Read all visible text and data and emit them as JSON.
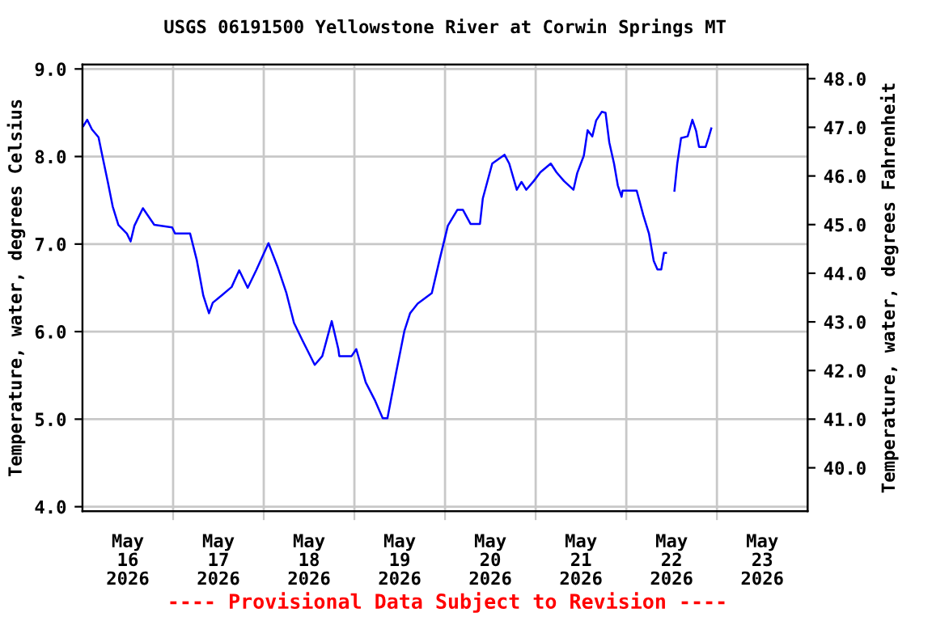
{
  "chart_data": {
    "type": "line",
    "title": "USGS 06191500 Yellowstone River at Corwin Springs MT",
    "ylabel": "Temperature, water, degrees Celsius",
    "y2label": "Temperature, water, degrees Fahrenheit",
    "annotations": [
      "---- Provisional Data Subject to Revision ----"
    ],
    "xlim": [
      "2026-05-16T00:00",
      "2026-05-24T00:00"
    ],
    "xticks": [
      {
        "value": "2026-05-16T12:00",
        "label": "May\n16\n2026"
      },
      {
        "value": "2026-05-17T12:00",
        "label": "May\n17\n2026"
      },
      {
        "value": "2026-05-18T12:00",
        "label": "May\n18\n2026"
      },
      {
        "value": "2026-05-19T12:00",
        "label": "May\n19\n2026"
      },
      {
        "value": "2026-05-20T12:00",
        "label": "May\n20\n2026"
      },
      {
        "value": "2026-05-21T12:00",
        "label": "May\n21\n2026"
      },
      {
        "value": "2026-05-22T12:00",
        "label": "May\n22\n2026"
      },
      {
        "value": "2026-05-23T12:00",
        "label": "May\n23\n2026"
      },
      {
        "value": "2026-05-17T00:00",
        "label": null
      },
      {
        "value": "2026-05-18T00:00",
        "label": null
      },
      {
        "value": "2026-05-19T00:00",
        "label": null
      },
      {
        "value": "2026-05-20T00:00",
        "label": null
      },
      {
        "value": "2026-05-21T00:00",
        "label": null
      },
      {
        "value": "2026-05-22T00:00",
        "label": null
      },
      {
        "value": "2026-05-23T00:00",
        "label": null
      }
    ],
    "ylim": [
      3.95,
      9.05
    ],
    "yticks": [
      {
        "value": 4,
        "label": "4.0"
      },
      {
        "value": 5,
        "label": "5.0"
      },
      {
        "value": 6,
        "label": "6.0"
      },
      {
        "value": 7,
        "label": "7.0"
      },
      {
        "value": 8,
        "label": "8.0"
      },
      {
        "value": 9,
        "label": "9.0"
      }
    ],
    "y2lim": [
      39.11,
      48.29
    ],
    "y2ticks": [
      {
        "value": 40,
        "label": "40.0"
      },
      {
        "value": 41,
        "label": "41.0"
      },
      {
        "value": 42,
        "label": "42.0"
      },
      {
        "value": 43,
        "label": "43.0"
      },
      {
        "value": 44,
        "label": "44.0"
      },
      {
        "value": 45,
        "label": "45.0"
      },
      {
        "value": 46,
        "label": "46.0"
      },
      {
        "value": 47,
        "label": "47.0"
      },
      {
        "value": 48,
        "label": "48.0"
      }
    ],
    "grid": true,
    "legend": false,
    "marker": "none",
    "line_style": "solid",
    "series": [
      {
        "color": "#0000ff",
        "x": [
          "2026-05-16T00:15",
          "2026-05-16T01:15",
          "2026-05-16T02:30",
          "2026-05-16T04:15",
          "2026-05-16T05:15",
          "2026-05-16T06:45",
          "2026-05-16T08:00",
          "2026-05-16T09:30",
          "2026-05-16T11:45",
          "2026-05-16T12:45",
          "2026-05-16T13:45",
          "2026-05-16T16:00",
          "2026-05-16T19:00",
          "2026-05-16T23:45",
          "2026-05-17T00:30",
          "2026-05-17T04:30",
          "2026-05-17T06:15",
          "2026-05-17T08:00",
          "2026-05-17T09:30",
          "2026-05-17T10:30",
          "2026-05-17T12:45",
          "2026-05-17T15:30",
          "2026-05-17T17:30",
          "2026-05-17T19:45",
          "2026-05-17T22:00",
          "2026-05-18T01:15",
          "2026-05-18T03:45",
          "2026-05-18T06:00",
          "2026-05-18T08:00",
          "2026-05-18T10:15",
          "2026-05-18T13:30",
          "2026-05-18T15:30",
          "2026-05-18T18:00",
          "2026-05-18T19:45",
          "2026-05-18T20:00",
          "2026-05-18T23:15",
          "2026-05-19T00:30",
          "2026-05-19T03:00",
          "2026-05-19T05:30",
          "2026-05-19T07:30",
          "2026-05-19T08:45",
          "2026-05-19T11:00",
          "2026-05-19T13:15",
          "2026-05-19T14:45",
          "2026-05-19T16:45",
          "2026-05-19T20:30",
          "2026-05-19T22:30",
          "2026-05-20T00:45",
          "2026-05-20T03:15",
          "2026-05-20T04:45",
          "2026-05-20T06:45",
          "2026-05-20T09:15",
          "2026-05-20T10:00",
          "2026-05-20T12:30",
          "2026-05-20T15:45",
          "2026-05-20T17:00",
          "2026-05-20T19:00",
          "2026-05-20T20:15",
          "2026-05-20T21:30",
          "2026-05-20T23:30",
          "2026-05-21T01:15",
          "2026-05-21T04:00",
          "2026-05-21T05:30",
          "2026-05-21T07:30",
          "2026-05-21T10:00",
          "2026-05-21T11:00",
          "2026-05-21T12:45",
          "2026-05-21T13:45",
          "2026-05-21T15:00",
          "2026-05-21T16:00",
          "2026-05-21T17:30",
          "2026-05-21T18:30",
          "2026-05-21T19:30",
          "2026-05-21T20:45",
          "2026-05-21T21:45",
          "2026-05-21T22:45",
          "2026-05-21T23:00",
          "2026-05-22T02:45",
          "2026-05-22T04:30",
          "2026-05-22T06:00",
          "2026-05-22T07:15",
          "2026-05-22T08:15",
          "2026-05-22T09:15",
          "2026-05-22T10:00",
          "2026-05-22T10:30",
          "2026-05-22T12:00",
          "2026-05-22T12:45",
          "2026-05-22T13:30",
          "2026-05-22T14:30",
          "2026-05-22T16:15",
          "2026-05-22T17:30",
          "2026-05-22T18:30",
          "2026-05-22T19:15",
          "2026-05-22T21:00",
          "2026-05-22T21:45",
          "2026-05-22T22:30"
        ],
        "values": [
          8.35,
          8.42,
          8.31,
          8.22,
          8.01,
          7.7,
          7.43,
          7.22,
          7.12,
          7.03,
          7.21,
          7.41,
          7.22,
          7.19,
          7.12,
          7.12,
          6.82,
          6.41,
          6.21,
          6.33,
          6.41,
          6.51,
          6.7,
          6.5,
          6.7,
          7.01,
          6.73,
          6.44,
          6.1,
          5.9,
          5.62,
          5.72,
          6.12,
          5.8,
          5.72,
          5.72,
          5.8,
          5.42,
          5.21,
          5.01,
          5.01,
          5.52,
          6.01,
          6.21,
          6.32,
          6.44,
          6.81,
          7.21,
          7.39,
          7.39,
          7.23,
          7.23,
          7.52,
          7.92,
          8.02,
          7.92,
          7.62,
          7.71,
          7.62,
          7.72,
          7.82,
          7.92,
          7.82,
          7.72,
          7.62,
          7.81,
          8.01,
          8.3,
          8.23,
          8.41,
          8.51,
          8.5,
          8.16,
          7.92,
          7.67,
          7.54,
          7.61,
          7.61,
          7.33,
          7.12,
          6.81,
          6.71,
          6.71,
          6.9,
          6.9,
          null,
          7.61,
          7.92,
          8.21,
          8.23,
          8.42,
          8.29,
          8.11,
          8.11,
          8.21,
          8.32
        ]
      }
    ]
  }
}
